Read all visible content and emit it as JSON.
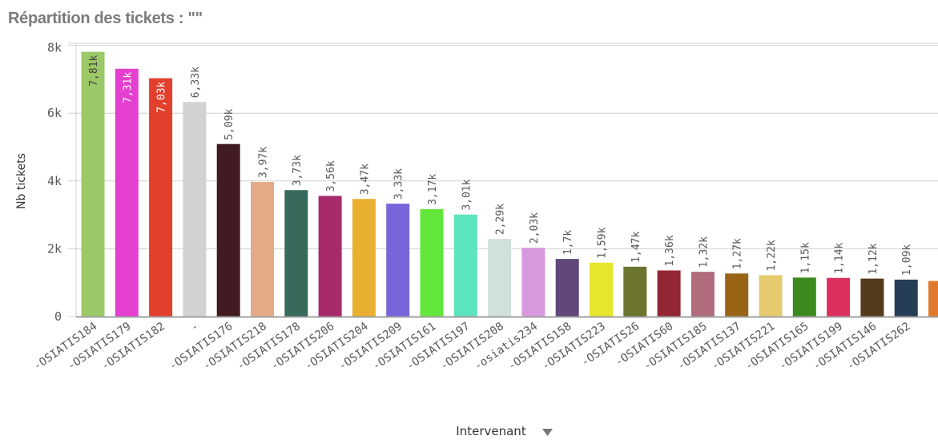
{
  "chart_data": {
    "type": "bar",
    "title": "Répartition des tickets : \"\"",
    "xlabel": "Intervenant",
    "ylabel": "Nb tickets",
    "ylim": [
      0,
      8000
    ],
    "yticks": [
      "0",
      "2k",
      "4k",
      "6k",
      "8k"
    ],
    "ytick_values": [
      0,
      2000,
      4000,
      6000,
      8000
    ],
    "grid": true,
    "xlabel_dropdown_icon": "caret-down-icon",
    "categories": [
      "-OSIATIS184",
      "-OSIATIS179",
      "-OSIATIS182",
      "-",
      "-OSIATIS176",
      "-OSIATIS218",
      "-OSIATIS178",
      "-OSIATIS206",
      "-OSIATIS204",
      "-OSIATIS209",
      "-OSIATIS161",
      "-OSIATIS197",
      "-OSIATIS208",
      "-osiatis234",
      "-OSIATIS158",
      "-OSIATIS223",
      "-OSIATIS26",
      "-OSIATIS60",
      "-OSIATIS185",
      "-OSIATIS137",
      "-OSIATIS221",
      "-OSIATIS165",
      "-OSIATIS199",
      "-OSIATIS146",
      "-OSIATIS262",
      ""
    ],
    "values": [
      7810,
      7310,
      7030,
      6330,
      5090,
      3970,
      3730,
      3560,
      3470,
      3330,
      3170,
      3010,
      2290,
      2030,
      1700,
      1590,
      1470,
      1360,
      1320,
      1270,
      1220,
      1150,
      1140,
      1120,
      1090,
      1050
    ],
    "data_labels": [
      "7,81k",
      "7,31k",
      "7,03k",
      "6,33k",
      "5,09k",
      "3,97k",
      "3,73k",
      "3,56k",
      "3,47k",
      "3,33k",
      "3,17k",
      "3,01k",
      "2,29k",
      "2,03k",
      "1,7k",
      "1,59k",
      "1,47k",
      "1,36k",
      "1,32k",
      "1,27k",
      "1,22k",
      "1,15k",
      "1,14k",
      "1,12k",
      "1,09k",
      ""
    ],
    "colors": [
      "#9bc967",
      "#e43fcf",
      "#e2402c",
      "#d2d2d2",
      "#411b21",
      "#e5aa88",
      "#376a5a",
      "#a82a6b",
      "#e9b02f",
      "#7766db",
      "#63e63c",
      "#5ce5be",
      "#d0e0da",
      "#d898de",
      "#62477c",
      "#e6e62c",
      "#6c742f",
      "#932634",
      "#ae6c7c",
      "#9a6416",
      "#e5ca6e",
      "#3c8a1e",
      "#dc305f",
      "#533b1b",
      "#263d58",
      "#e07a2a"
    ]
  }
}
